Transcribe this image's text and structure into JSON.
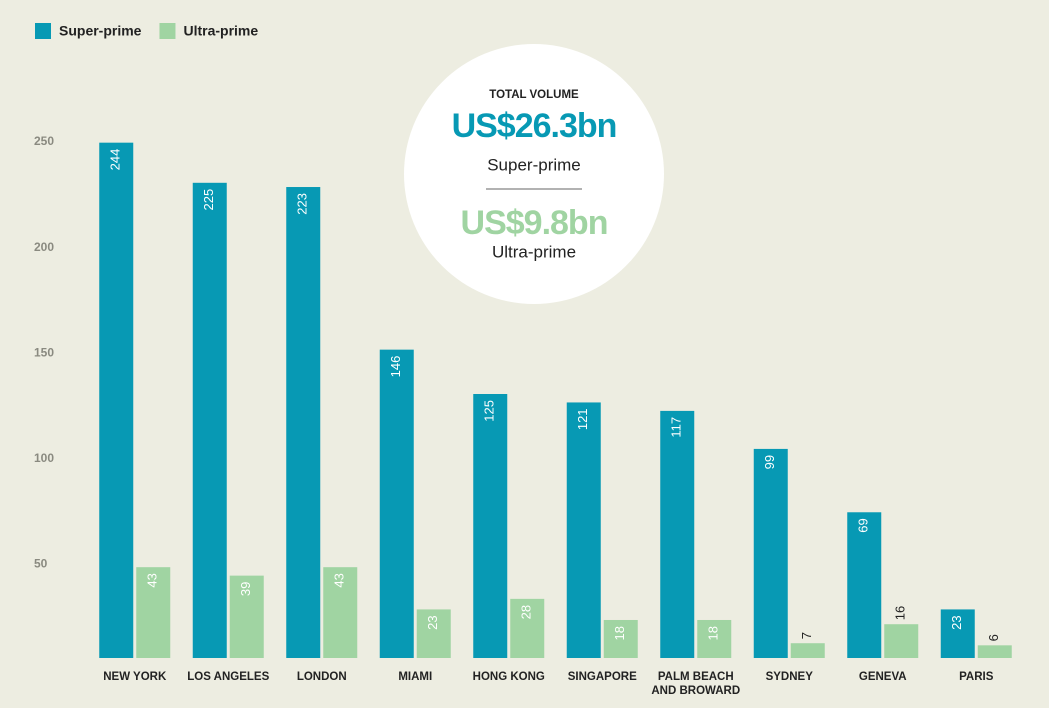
{
  "chart_data": {
    "type": "bar",
    "categories": [
      "NEW YORK",
      "LOS ANGELES",
      "LONDON",
      "MIAMI",
      "HONG KONG",
      "SINGAPORE",
      "PALM BEACH AND BROWARD",
      "SYDNEY",
      "GENEVA",
      "PARIS"
    ],
    "series": [
      {
        "name": "Super-prime",
        "color": "#0799b4",
        "values": [
          244,
          225,
          223,
          146,
          125,
          121,
          117,
          99,
          69,
          23
        ]
      },
      {
        "name": "Ultra-prime",
        "color": "#a0d4a2",
        "values": [
          43,
          39,
          43,
          23,
          28,
          18,
          18,
          7,
          16,
          6
        ]
      }
    ],
    "ylim": [
      0,
      250
    ],
    "yticks": [
      50,
      100,
      150,
      200,
      250
    ],
    "legend": "top-left",
    "annotation": {
      "heading": "TOTAL VOLUME",
      "super_value": "US$26.3bn",
      "super_label": "Super-prime",
      "ultra_value": "US$9.8bn",
      "ultra_label": "Ultra-prime"
    }
  }
}
